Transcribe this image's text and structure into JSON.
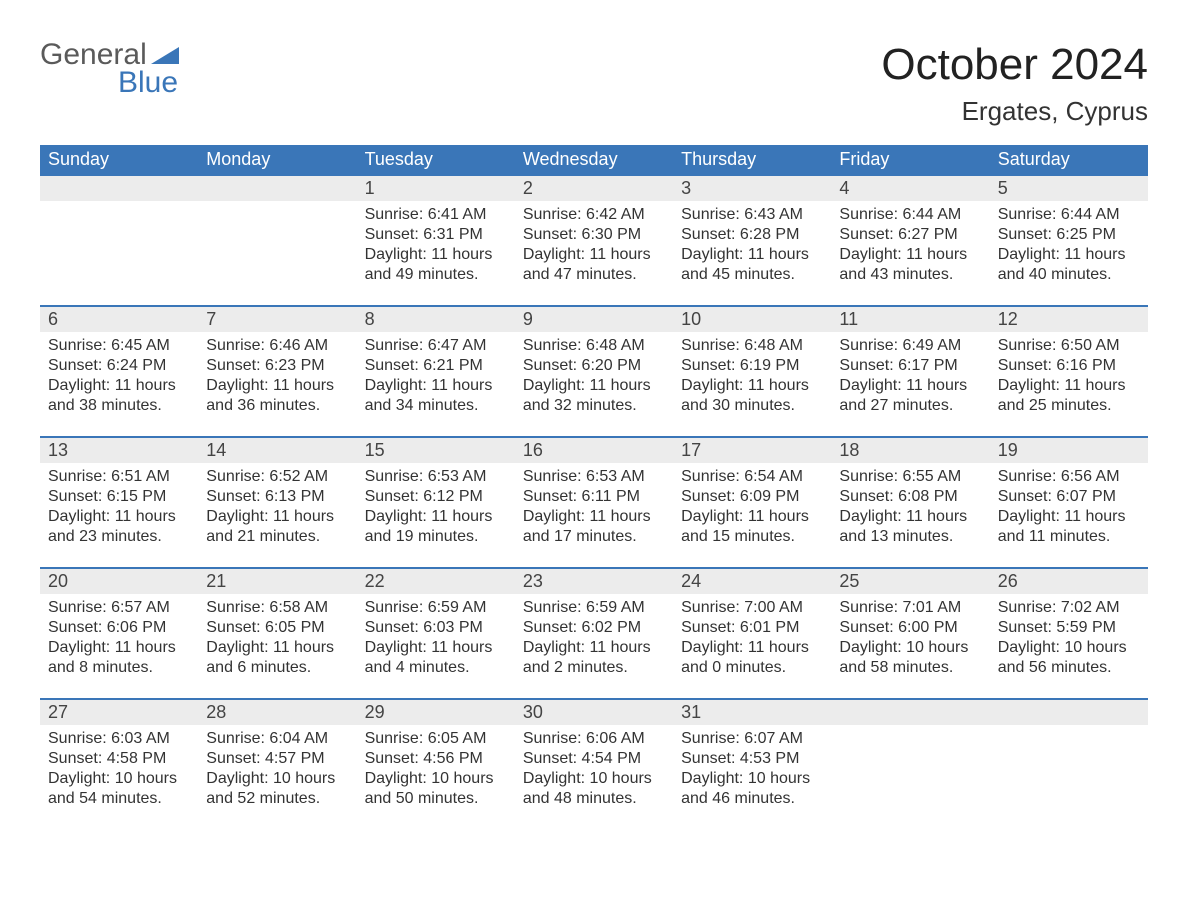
{
  "logo": {
    "line1": "General",
    "line2": "Blue",
    "brand_color": "#3a76b8",
    "text_color": "#5a5a5a"
  },
  "title": "October 2024",
  "location": "Ergates, Cyprus",
  "day_headers": [
    "Sunday",
    "Monday",
    "Tuesday",
    "Wednesday",
    "Thursday",
    "Friday",
    "Saturday"
  ],
  "colors": {
    "header_bg": "#3a76b8",
    "header_fg": "#ffffff",
    "daynum_bg": "#ececec",
    "row_border": "#3a76b8",
    "page_bg": "#ffffff"
  },
  "weeks": [
    [
      null,
      null,
      {
        "day": "1",
        "sunrise": "Sunrise: 6:41 AM",
        "sunset": "Sunset: 6:31 PM",
        "daylight1": "Daylight: 11 hours",
        "daylight2": "and 49 minutes."
      },
      {
        "day": "2",
        "sunrise": "Sunrise: 6:42 AM",
        "sunset": "Sunset: 6:30 PM",
        "daylight1": "Daylight: 11 hours",
        "daylight2": "and 47 minutes."
      },
      {
        "day": "3",
        "sunrise": "Sunrise: 6:43 AM",
        "sunset": "Sunset: 6:28 PM",
        "daylight1": "Daylight: 11 hours",
        "daylight2": "and 45 minutes."
      },
      {
        "day": "4",
        "sunrise": "Sunrise: 6:44 AM",
        "sunset": "Sunset: 6:27 PM",
        "daylight1": "Daylight: 11 hours",
        "daylight2": "and 43 minutes."
      },
      {
        "day": "5",
        "sunrise": "Sunrise: 6:44 AM",
        "sunset": "Sunset: 6:25 PM",
        "daylight1": "Daylight: 11 hours",
        "daylight2": "and 40 minutes."
      }
    ],
    [
      {
        "day": "6",
        "sunrise": "Sunrise: 6:45 AM",
        "sunset": "Sunset: 6:24 PM",
        "daylight1": "Daylight: 11 hours",
        "daylight2": "and 38 minutes."
      },
      {
        "day": "7",
        "sunrise": "Sunrise: 6:46 AM",
        "sunset": "Sunset: 6:23 PM",
        "daylight1": "Daylight: 11 hours",
        "daylight2": "and 36 minutes."
      },
      {
        "day": "8",
        "sunrise": "Sunrise: 6:47 AM",
        "sunset": "Sunset: 6:21 PM",
        "daylight1": "Daylight: 11 hours",
        "daylight2": "and 34 minutes."
      },
      {
        "day": "9",
        "sunrise": "Sunrise: 6:48 AM",
        "sunset": "Sunset: 6:20 PM",
        "daylight1": "Daylight: 11 hours",
        "daylight2": "and 32 minutes."
      },
      {
        "day": "10",
        "sunrise": "Sunrise: 6:48 AM",
        "sunset": "Sunset: 6:19 PM",
        "daylight1": "Daylight: 11 hours",
        "daylight2": "and 30 minutes."
      },
      {
        "day": "11",
        "sunrise": "Sunrise: 6:49 AM",
        "sunset": "Sunset: 6:17 PM",
        "daylight1": "Daylight: 11 hours",
        "daylight2": "and 27 minutes."
      },
      {
        "day": "12",
        "sunrise": "Sunrise: 6:50 AM",
        "sunset": "Sunset: 6:16 PM",
        "daylight1": "Daylight: 11 hours",
        "daylight2": "and 25 minutes."
      }
    ],
    [
      {
        "day": "13",
        "sunrise": "Sunrise: 6:51 AM",
        "sunset": "Sunset: 6:15 PM",
        "daylight1": "Daylight: 11 hours",
        "daylight2": "and 23 minutes."
      },
      {
        "day": "14",
        "sunrise": "Sunrise: 6:52 AM",
        "sunset": "Sunset: 6:13 PM",
        "daylight1": "Daylight: 11 hours",
        "daylight2": "and 21 minutes."
      },
      {
        "day": "15",
        "sunrise": "Sunrise: 6:53 AM",
        "sunset": "Sunset: 6:12 PM",
        "daylight1": "Daylight: 11 hours",
        "daylight2": "and 19 minutes."
      },
      {
        "day": "16",
        "sunrise": "Sunrise: 6:53 AM",
        "sunset": "Sunset: 6:11 PM",
        "daylight1": "Daylight: 11 hours",
        "daylight2": "and 17 minutes."
      },
      {
        "day": "17",
        "sunrise": "Sunrise: 6:54 AM",
        "sunset": "Sunset: 6:09 PM",
        "daylight1": "Daylight: 11 hours",
        "daylight2": "and 15 minutes."
      },
      {
        "day": "18",
        "sunrise": "Sunrise: 6:55 AM",
        "sunset": "Sunset: 6:08 PM",
        "daylight1": "Daylight: 11 hours",
        "daylight2": "and 13 minutes."
      },
      {
        "day": "19",
        "sunrise": "Sunrise: 6:56 AM",
        "sunset": "Sunset: 6:07 PM",
        "daylight1": "Daylight: 11 hours",
        "daylight2": "and 11 minutes."
      }
    ],
    [
      {
        "day": "20",
        "sunrise": "Sunrise: 6:57 AM",
        "sunset": "Sunset: 6:06 PM",
        "daylight1": "Daylight: 11 hours",
        "daylight2": "and 8 minutes."
      },
      {
        "day": "21",
        "sunrise": "Sunrise: 6:58 AM",
        "sunset": "Sunset: 6:05 PM",
        "daylight1": "Daylight: 11 hours",
        "daylight2": "and 6 minutes."
      },
      {
        "day": "22",
        "sunrise": "Sunrise: 6:59 AM",
        "sunset": "Sunset: 6:03 PM",
        "daylight1": "Daylight: 11 hours",
        "daylight2": "and 4 minutes."
      },
      {
        "day": "23",
        "sunrise": "Sunrise: 6:59 AM",
        "sunset": "Sunset: 6:02 PM",
        "daylight1": "Daylight: 11 hours",
        "daylight2": "and 2 minutes."
      },
      {
        "day": "24",
        "sunrise": "Sunrise: 7:00 AM",
        "sunset": "Sunset: 6:01 PM",
        "daylight1": "Daylight: 11 hours",
        "daylight2": "and 0 minutes."
      },
      {
        "day": "25",
        "sunrise": "Sunrise: 7:01 AM",
        "sunset": "Sunset: 6:00 PM",
        "daylight1": "Daylight: 10 hours",
        "daylight2": "and 58 minutes."
      },
      {
        "day": "26",
        "sunrise": "Sunrise: 7:02 AM",
        "sunset": "Sunset: 5:59 PM",
        "daylight1": "Daylight: 10 hours",
        "daylight2": "and 56 minutes."
      }
    ],
    [
      {
        "day": "27",
        "sunrise": "Sunrise: 6:03 AM",
        "sunset": "Sunset: 4:58 PM",
        "daylight1": "Daylight: 10 hours",
        "daylight2": "and 54 minutes."
      },
      {
        "day": "28",
        "sunrise": "Sunrise: 6:04 AM",
        "sunset": "Sunset: 4:57 PM",
        "daylight1": "Daylight: 10 hours",
        "daylight2": "and 52 minutes."
      },
      {
        "day": "29",
        "sunrise": "Sunrise: 6:05 AM",
        "sunset": "Sunset: 4:56 PM",
        "daylight1": "Daylight: 10 hours",
        "daylight2": "and 50 minutes."
      },
      {
        "day": "30",
        "sunrise": "Sunrise: 6:06 AM",
        "sunset": "Sunset: 4:54 PM",
        "daylight1": "Daylight: 10 hours",
        "daylight2": "and 48 minutes."
      },
      {
        "day": "31",
        "sunrise": "Sunrise: 6:07 AM",
        "sunset": "Sunset: 4:53 PM",
        "daylight1": "Daylight: 10 hours",
        "daylight2": "and 46 minutes."
      },
      null,
      null
    ]
  ]
}
